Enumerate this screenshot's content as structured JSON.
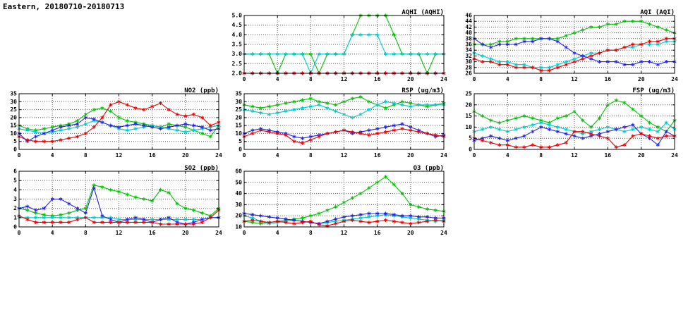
{
  "header": {
    "title": "Eastern, 20180710-20180713"
  },
  "colors": {
    "red": "#e60000",
    "green": "#00c000",
    "blue": "#2222e0",
    "cyan": "#00c8c8",
    "grid": "#555555",
    "frame": "#000000"
  },
  "chart_data": [
    {
      "id": "aqhi",
      "type": "line",
      "title": "AQHI (AQHI)",
      "xlabel": "",
      "ylabel": "",
      "xlim": [
        0,
        24
      ],
      "xticks": [
        0,
        4,
        8,
        12,
        16,
        20,
        24
      ],
      "ylim": [
        2,
        5
      ],
      "yticks": [
        2,
        2.5,
        3,
        3.5,
        4,
        4.5,
        5
      ],
      "ytick_labels": [
        "2.0",
        "2.5",
        "3.0",
        "3.5",
        "4.0",
        "4.5",
        "5.0"
      ],
      "grid": true,
      "series": [
        {
          "color": "green",
          "values": [
            3,
            3,
            3,
            3,
            2,
            3,
            3,
            3,
            3,
            2,
            3,
            3,
            3,
            4,
            5,
            5,
            5,
            5,
            4,
            3,
            3,
            3,
            2,
            3,
            3
          ]
        },
        {
          "color": "cyan",
          "values": [
            3,
            3,
            3,
            3,
            3,
            3,
            3,
            3,
            2,
            3,
            3,
            3,
            3,
            4,
            4,
            4,
            4,
            3,
            3,
            3,
            3,
            3,
            3,
            3,
            3
          ]
        },
        {
          "color": "blue",
          "values": [
            2,
            2,
            2,
            2,
            2,
            2,
            2,
            2,
            2,
            2,
            2,
            2,
            2,
            2,
            2,
            2,
            2,
            2,
            2,
            2,
            2,
            2,
            2,
            2,
            2
          ]
        },
        {
          "color": "red",
          "values": [
            2,
            2,
            2,
            2,
            2,
            2,
            2,
            2,
            2,
            2,
            2,
            2,
            2,
            2,
            2,
            2,
            2,
            2,
            2,
            2,
            2,
            2,
            2,
            2,
            2
          ]
        }
      ]
    },
    {
      "id": "aqi",
      "type": "line",
      "title": "AQI (AQI)",
      "xlabel": "",
      "ylabel": "",
      "xlim": [
        0,
        24
      ],
      "xticks": [
        0,
        4,
        8,
        12,
        16,
        20,
        24
      ],
      "ylim": [
        26,
        46
      ],
      "yticks": [
        26,
        28,
        30,
        32,
        34,
        36,
        38,
        40,
        42,
        44,
        46
      ],
      "grid": true,
      "series": [
        {
          "color": "green",
          "values": [
            36,
            36,
            36,
            37,
            37,
            38,
            38,
            38,
            38,
            38,
            38,
            39,
            40,
            41,
            42,
            42,
            43,
            43,
            44,
            44,
            44,
            43,
            42,
            41,
            40
          ]
        },
        {
          "color": "cyan",
          "values": [
            33,
            32,
            31,
            30,
            30,
            29,
            29,
            28,
            28,
            28,
            29,
            30,
            31,
            32,
            33,
            33,
            34,
            34,
            35,
            35,
            36,
            36,
            36,
            37,
            37
          ]
        },
        {
          "color": "blue",
          "values": [
            38,
            36,
            35,
            36,
            36,
            36,
            37,
            37,
            38,
            38,
            37,
            35,
            33,
            32,
            31,
            30,
            30,
            30,
            29,
            29,
            30,
            30,
            29,
            30,
            30
          ]
        },
        {
          "color": "red",
          "values": [
            31,
            30,
            30,
            29,
            29,
            28,
            28,
            28,
            27,
            27,
            28,
            29,
            30,
            31,
            32,
            33,
            34,
            34,
            35,
            36,
            36,
            37,
            37,
            38,
            38
          ]
        }
      ]
    },
    {
      "id": "no2",
      "type": "line",
      "title": "NO2 (ppb)",
      "xlabel": "",
      "ylabel": "",
      "xlim": [
        0,
        24
      ],
      "xticks": [
        0,
        4,
        8,
        12,
        16,
        20,
        24
      ],
      "ylim": [
        0,
        35
      ],
      "yticks": [
        0,
        5,
        10,
        15,
        20,
        25,
        30,
        35
      ],
      "grid": true,
      "series": [
        {
          "color": "green",
          "values": [
            15,
            13,
            12,
            13,
            14,
            15,
            16,
            18,
            22,
            25,
            26,
            24,
            20,
            18,
            17,
            16,
            15,
            14,
            16,
            15,
            14,
            12,
            10,
            8,
            15
          ]
        },
        {
          "color": "cyan",
          "values": [
            13,
            12,
            11,
            10,
            11,
            12,
            13,
            14,
            16,
            18,
            17,
            15,
            13,
            12,
            13,
            14,
            15,
            14,
            13,
            12,
            11,
            12,
            13,
            14,
            15
          ]
        },
        {
          "color": "blue",
          "values": [
            10,
            5,
            8,
            10,
            12,
            14,
            15,
            16,
            20,
            19,
            17,
            15,
            14,
            15,
            16,
            15,
            14,
            13,
            14,
            15,
            16,
            15,
            14,
            12,
            13
          ]
        },
        {
          "color": "red",
          "values": [
            8,
            6,
            5,
            5,
            5,
            6,
            7,
            8,
            10,
            14,
            20,
            28,
            30,
            28,
            26,
            25,
            27,
            29,
            25,
            22,
            21,
            22,
            20,
            15,
            17
          ]
        }
      ]
    },
    {
      "id": "rsp",
      "type": "line",
      "title": "RSP (ug/m3)",
      "xlabel": "",
      "ylabel": "",
      "xlim": [
        0,
        24
      ],
      "xticks": [
        0,
        4,
        8,
        12,
        16,
        20,
        24
      ],
      "ylim": [
        0,
        35
      ],
      "yticks": [
        0,
        5,
        10,
        15,
        20,
        25,
        30,
        35
      ],
      "grid": true,
      "series": [
        {
          "color": "green",
          "values": [
            28,
            27,
            26,
            27,
            28,
            29,
            30,
            31,
            32,
            30,
            29,
            28,
            30,
            32,
            33,
            30,
            28,
            26,
            28,
            30,
            29,
            28,
            27,
            28,
            29
          ]
        },
        {
          "color": "cyan",
          "values": [
            25,
            24,
            23,
            22,
            23,
            24,
            25,
            26,
            27,
            28,
            26,
            24,
            22,
            20,
            22,
            25,
            28,
            30,
            29,
            28,
            27,
            28,
            28,
            28,
            28
          ]
        },
        {
          "color": "blue",
          "values": [
            10,
            12,
            13,
            12,
            11,
            10,
            8,
            7,
            8,
            9,
            10,
            11,
            12,
            10,
            11,
            12,
            13,
            14,
            15,
            16,
            14,
            12,
            10,
            8,
            9
          ]
        },
        {
          "color": "red",
          "values": [
            8,
            10,
            12,
            11,
            10,
            9,
            5,
            4,
            6,
            8,
            10,
            11,
            12,
            11,
            10,
            9,
            10,
            11,
            12,
            13,
            12,
            11,
            10,
            9,
            8
          ]
        }
      ]
    },
    {
      "id": "fsp",
      "type": "line",
      "title": "FSP (ug/m3)",
      "xlabel": "",
      "ylabel": "",
      "xlim": [
        0,
        24
      ],
      "xticks": [
        0,
        4,
        8,
        12,
        16,
        20,
        24
      ],
      "ylim": [
        0,
        25
      ],
      "yticks": [
        0,
        5,
        10,
        15,
        20,
        25
      ],
      "grid": true,
      "series": [
        {
          "color": "green",
          "values": [
            17,
            15,
            13,
            12,
            13,
            14,
            15,
            14,
            13,
            12,
            14,
            15,
            17,
            13,
            10,
            14,
            20,
            22,
            21,
            18,
            15,
            12,
            10,
            8,
            13
          ]
        },
        {
          "color": "cyan",
          "values": [
            8,
            9,
            10,
            9,
            8,
            9,
            10,
            11,
            12,
            11,
            10,
            9,
            8,
            7,
            8,
            9,
            10,
            9,
            8,
            9,
            10,
            9,
            8,
            12,
            9
          ]
        },
        {
          "color": "blue",
          "values": [
            4,
            5,
            6,
            5,
            4,
            5,
            6,
            8,
            10,
            9,
            8,
            7,
            6,
            5,
            6,
            7,
            8,
            9,
            10,
            11,
            7,
            5,
            2,
            8,
            6
          ]
        },
        {
          "color": "red",
          "values": [
            5,
            4,
            3,
            2,
            2,
            1,
            1,
            2,
            1,
            1,
            2,
            3,
            8,
            8,
            7,
            6,
            5,
            1,
            2,
            6,
            7,
            6,
            5,
            6,
            6
          ]
        }
      ]
    },
    {
      "id": "so2",
      "type": "line",
      "title": "SO2 (ppb)",
      "xlabel": "",
      "ylabel": "",
      "xlim": [
        0,
        24
      ],
      "xticks": [
        0,
        4,
        8,
        12,
        16,
        20,
        24
      ],
      "ylim": [
        0,
        6
      ],
      "yticks": [
        0,
        1,
        2,
        3,
        4,
        5,
        6
      ],
      "grid": true,
      "series": [
        {
          "color": "green",
          "values": [
            2,
            1.8,
            1.5,
            1.3,
            1.2,
            1.3,
            1.5,
            1.8,
            2,
            4.5,
            4.3,
            4,
            3.8,
            3.5,
            3.2,
            3,
            2.8,
            4,
            3.7,
            2.5,
            2,
            1.8,
            1.5,
            1.2,
            2
          ]
        },
        {
          "color": "cyan",
          "values": [
            1,
            1,
            1,
            1,
            1,
            1,
            1,
            1,
            1,
            1,
            1,
            1,
            0.8,
            0.8,
            0.8,
            0.8,
            0.8,
            0.8,
            0.8,
            0.8,
            0.8,
            0.8,
            0.8,
            1,
            1
          ]
        },
        {
          "color": "blue",
          "values": [
            2,
            2.2,
            1.8,
            2,
            3,
            3,
            2.5,
            2,
            1.5,
            4.2,
            1.2,
            0.8,
            0.5,
            0.8,
            1,
            0.8,
            0.5,
            0.8,
            1,
            0.5,
            0.3,
            0.5,
            0.8,
            1,
            1
          ]
        },
        {
          "color": "red",
          "values": [
            1.2,
            0.8,
            0.5,
            0.5,
            0.5,
            0.5,
            0.5,
            0.8,
            1,
            0.5,
            0.5,
            0.5,
            0.5,
            0.5,
            0.5,
            0.5,
            0.5,
            0.3,
            0.3,
            0.3,
            0.3,
            0.3,
            0.5,
            1,
            1.8
          ]
        }
      ]
    },
    {
      "id": "o3",
      "type": "line",
      "title": "O3 (ppb)",
      "xlabel": "",
      "ylabel": "",
      "xlim": [
        0,
        24
      ],
      "xticks": [
        0,
        4,
        8,
        12,
        16,
        20,
        24
      ],
      "ylim": [
        10,
        60
      ],
      "yticks": [
        10,
        20,
        30,
        40,
        50,
        60
      ],
      "grid": true,
      "series": [
        {
          "color": "green",
          "values": [
            15,
            14,
            13,
            14,
            15,
            16,
            17,
            18,
            20,
            22,
            25,
            28,
            32,
            36,
            40,
            45,
            50,
            55,
            48,
            40,
            30,
            28,
            26,
            25,
            24
          ]
        },
        {
          "color": "cyan",
          "values": [
            20,
            18,
            15,
            13,
            14,
            15,
            16,
            15,
            14,
            13,
            14,
            15,
            16,
            17,
            18,
            19,
            20,
            21,
            20,
            19,
            18,
            17,
            16,
            15,
            16
          ]
        },
        {
          "color": "blue",
          "values": [
            22,
            21,
            20,
            19,
            18,
            17,
            16,
            15,
            14,
            13,
            15,
            17,
            19,
            20,
            21,
            22,
            22,
            22,
            21,
            20,
            20,
            19,
            19,
            18,
            18
          ]
        },
        {
          "color": "red",
          "values": [
            15,
            16,
            15,
            14,
            15,
            14,
            13,
            14,
            15,
            12,
            11,
            13,
            15,
            16,
            15,
            14,
            15,
            16,
            15,
            14,
            13,
            14,
            15,
            16,
            15
          ]
        }
      ]
    }
  ]
}
